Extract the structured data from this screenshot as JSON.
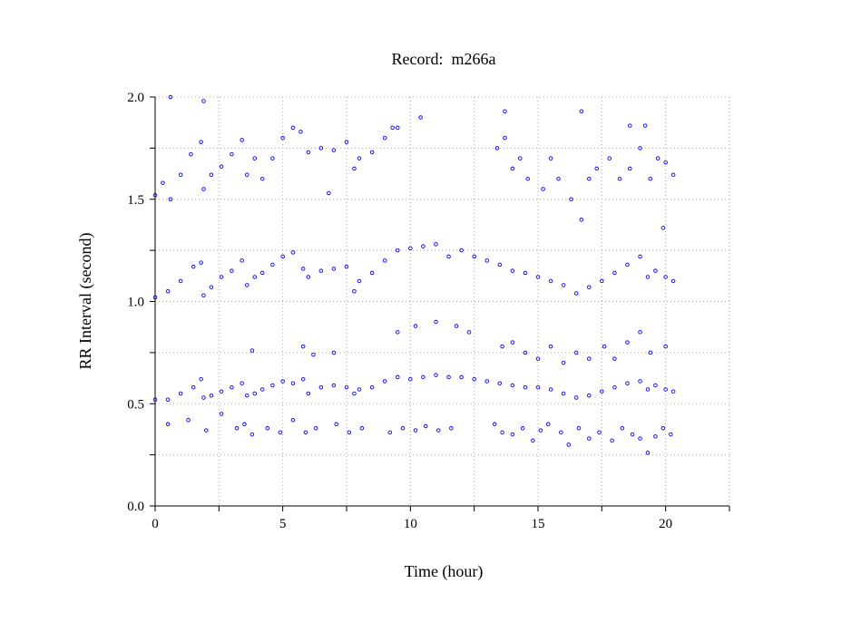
{
  "chart_data": {
    "type": "scatter",
    "title": "Record:  m266a",
    "xlabel": "Time (hour)",
    "ylabel": "RR Interval (second)",
    "xlim": [
      0,
      22.5
    ],
    "ylim": [
      0,
      2.0
    ],
    "x_ticks": [
      0,
      5,
      10,
      15,
      20
    ],
    "x_minor_ticks": [
      2.5,
      7.5,
      12.5,
      17.5,
      22.5
    ],
    "x_tick_labels": [
      "0",
      "5",
      "10",
      "15",
      "20"
    ],
    "y_ticks": [
      0.0,
      0.5,
      1.0,
      1.5,
      2.0
    ],
    "y_minor_ticks": [
      0.25,
      0.75,
      1.25,
      1.75
    ],
    "y_tick_labels": [
      "0.0",
      "0.5",
      "1.0",
      "1.5",
      "2.0"
    ],
    "grid": true,
    "marker_color": "#0000ff",
    "series": [
      {
        "x": [
          0,
          0.5,
          1.0,
          1.5,
          1.8,
          1.9,
          2.2,
          2.6,
          3.0,
          3.4,
          3.6,
          3.9,
          4.2,
          4.6,
          5.0,
          5.4,
          5.8,
          6.0,
          6.5,
          7.0,
          7.5,
          7.8,
          8.0,
          8.5,
          9.0,
          9.5,
          10.0,
          10.5,
          11.0,
          11.5,
          12.0,
          12.5,
          13.0,
          13.5,
          14.0,
          14.5,
          15.0,
          15.5,
          16.0,
          16.5,
          17.0,
          17.5,
          18.0,
          18.5,
          19.0,
          19.3,
          19.6,
          20.0,
          20.3
        ],
        "y": [
          0.52,
          0.52,
          0.55,
          0.58,
          0.62,
          0.53,
          0.54,
          0.56,
          0.58,
          0.6,
          0.54,
          0.55,
          0.57,
          0.59,
          0.61,
          0.6,
          0.62,
          0.55,
          0.58,
          0.59,
          0.58,
          0.55,
          0.57,
          0.58,
          0.61,
          0.63,
          0.62,
          0.63,
          0.64,
          0.63,
          0.63,
          0.62,
          0.61,
          0.6,
          0.59,
          0.58,
          0.58,
          0.57,
          0.55,
          0.53,
          0.54,
          0.56,
          0.58,
          0.6,
          0.61,
          0.57,
          0.59,
          0.57,
          0.56
        ]
      },
      {
        "x": [
          0,
          0.5,
          1.0,
          1.5,
          1.8,
          1.9,
          2.2,
          2.6,
          3.0,
          3.4,
          3.6,
          3.9,
          4.2,
          4.6,
          5.0,
          5.4,
          5.8,
          6.0,
          6.5,
          7.0,
          7.5,
          7.8,
          8.0,
          8.5,
          9.0,
          9.5,
          10.0,
          10.5,
          11.0,
          11.5,
          12.0,
          12.5,
          13.0,
          13.5,
          14.0,
          14.5,
          15.0,
          15.5,
          16.0,
          16.5,
          17.0,
          17.5,
          18.0,
          18.5,
          19.0,
          19.3,
          19.6,
          20.0,
          20.3
        ],
        "y": [
          1.02,
          1.05,
          1.1,
          1.17,
          1.19,
          1.03,
          1.07,
          1.12,
          1.15,
          1.2,
          1.08,
          1.12,
          1.14,
          1.18,
          1.22,
          1.24,
          1.16,
          1.12,
          1.15,
          1.16,
          1.17,
          1.05,
          1.1,
          1.14,
          1.2,
          1.25,
          1.26,
          1.27,
          1.28,
          1.22,
          1.25,
          1.22,
          1.2,
          1.18,
          1.15,
          1.14,
          1.12,
          1.1,
          1.08,
          1.04,
          1.07,
          1.1,
          1.14,
          1.18,
          1.22,
          1.12,
          1.15,
          1.12,
          1.1
        ]
      },
      {
        "x": [
          0,
          0.3,
          0.6,
          1.0,
          1.4,
          1.8,
          1.9,
          2.2,
          2.6,
          3.0,
          3.4,
          3.6,
          3.9,
          4.2,
          4.6,
          5.0,
          5.4,
          5.7,
          6.0,
          6.5,
          7.0,
          7.5,
          7.8,
          8.0,
          8.5,
          9.0,
          9.5
        ],
        "y": [
          1.52,
          1.58,
          1.5,
          1.62,
          1.72,
          1.78,
          1.55,
          1.62,
          1.66,
          1.72,
          1.79,
          1.62,
          1.7,
          1.6,
          1.7,
          1.8,
          1.85,
          1.83,
          1.73,
          1.75,
          1.74,
          1.78,
          1.65,
          1.7,
          1.73,
          1.8,
          1.85
        ]
      },
      {
        "x": [
          13.4,
          13.7,
          14.0,
          14.3,
          14.6,
          15.2,
          15.5,
          15.8,
          16.3,
          16.7,
          17.0,
          17.3,
          17.8,
          18.2,
          18.6,
          19.0,
          19.4,
          19.7,
          20.0,
          20.3
        ],
        "y": [
          1.75,
          1.8,
          1.65,
          1.7,
          1.6,
          1.55,
          1.7,
          1.6,
          1.5,
          1.4,
          1.6,
          1.65,
          1.7,
          1.6,
          1.65,
          1.75,
          1.6,
          1.7,
          1.68,
          1.62
        ]
      },
      {
        "x": [
          0.6,
          1.9,
          6.8,
          9.3,
          10.4,
          13.7,
          16.7,
          18.6,
          19.2,
          19.9
        ],
        "y": [
          2.0,
          1.98,
          1.53,
          1.85,
          1.9,
          1.93,
          1.93,
          1.86,
          1.86,
          1.36
        ]
      },
      {
        "x": [
          0.5,
          1.3,
          2.0,
          2.6,
          3.2,
          3.5,
          3.8,
          4.4,
          4.9,
          5.4,
          5.9,
          6.3,
          7.1,
          7.6,
          8.1,
          9.2,
          9.7,
          10.2,
          10.6,
          11.1,
          11.6,
          13.3,
          13.6,
          14.0,
          14.4,
          14.8,
          15.1,
          15.4,
          15.9,
          16.2,
          16.6,
          17.0,
          17.4,
          17.9,
          18.3,
          18.7,
          19.0,
          19.3,
          19.6,
          19.9,
          20.2
        ],
        "y": [
          0.4,
          0.42,
          0.37,
          0.45,
          0.38,
          0.4,
          0.35,
          0.38,
          0.36,
          0.42,
          0.36,
          0.38,
          0.4,
          0.36,
          0.38,
          0.36,
          0.38,
          0.37,
          0.39,
          0.37,
          0.38,
          0.4,
          0.36,
          0.35,
          0.38,
          0.32,
          0.37,
          0.4,
          0.36,
          0.3,
          0.38,
          0.33,
          0.36,
          0.32,
          0.38,
          0.35,
          0.33,
          0.26,
          0.34,
          0.38,
          0.35
        ]
      },
      {
        "x": [
          3.8,
          5.8,
          6.2,
          7.0,
          9.5,
          10.2,
          11.0,
          11.8,
          12.3,
          13.6,
          14.0,
          14.5,
          15.0,
          15.5,
          16.0,
          16.5,
          17.0,
          17.6,
          18.0,
          18.5,
          19.0,
          19.4,
          20.0
        ],
        "y": [
          0.76,
          0.78,
          0.74,
          0.75,
          0.85,
          0.88,
          0.9,
          0.88,
          0.85,
          0.78,
          0.8,
          0.75,
          0.72,
          0.78,
          0.7,
          0.75,
          0.72,
          0.78,
          0.72,
          0.8,
          0.85,
          0.75,
          0.78
        ]
      }
    ]
  }
}
